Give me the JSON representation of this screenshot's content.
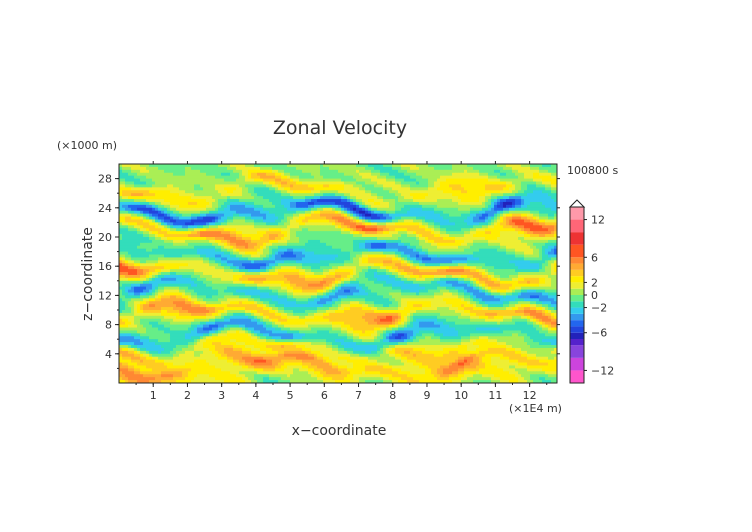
{
  "chart_data": {
    "type": "heatmap",
    "title": "Zonal Velocity",
    "xlabel": "x−coordinate",
    "ylabel": "z−coordinate",
    "x_units": "(×1E4 m)",
    "y_units": "(×1000 m)",
    "time_label": "100800 s",
    "xlim": [
      0,
      12.8
    ],
    "ylim": [
      0,
      30
    ],
    "x_ticks": [
      "1",
      "2",
      "3",
      "4",
      "5",
      "6",
      "7",
      "8",
      "9",
      "10",
      "11",
      "12"
    ],
    "y_ticks": [
      "4",
      "8",
      "12",
      "16",
      "20",
      "24",
      "28"
    ],
    "colorbar": {
      "tick_labels": [
        "12",
        "6",
        "2",
        "0",
        "−2",
        "−6",
        "−12"
      ],
      "levels": [
        -14,
        -12,
        -10,
        -8,
        -7,
        -6,
        -5,
        -4,
        -3,
        -2,
        -1,
        0,
        1,
        2,
        3,
        4,
        5,
        6,
        8,
        10,
        12,
        14
      ],
      "colors": [
        "#ff55cc",
        "#cc44dd",
        "#8844dd",
        "#5522cc",
        "#2222bb",
        "#2244dd",
        "#2266ee",
        "#3399ee",
        "#33ccee",
        "#33ddbb",
        "#66ee88",
        "#aaee55",
        "#eeee33",
        "#ffee00",
        "#ffcc22",
        "#ffaa33",
        "#ff8833",
        "#ff5522",
        "#ee3333",
        "#ff6677",
        "#ff99aa"
      ]
    },
    "field_bands": [
      {
        "z": 1.0,
        "amp": 2.5
      },
      {
        "z": 2.5,
        "amp": 5.0
      },
      {
        "z": 4.5,
        "amp": 3.0
      },
      {
        "z": 6.5,
        "amp": -4.0
      },
      {
        "z": 9.5,
        "amp": 5.0
      },
      {
        "z": 12.5,
        "amp": -3.5
      },
      {
        "z": 15.0,
        "amp": 5.0
      },
      {
        "z": 17.5,
        "amp": -4.0
      },
      {
        "z": 21.0,
        "amp": 5.0
      },
      {
        "z": 23.5,
        "amp": -5.0
      },
      {
        "z": 26.5,
        "amp": 3.0
      }
    ]
  }
}
